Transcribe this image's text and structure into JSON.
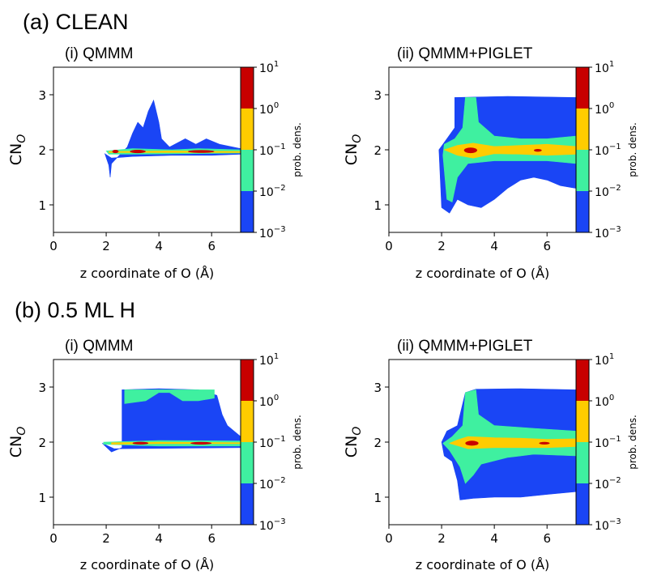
{
  "sections": [
    {
      "label": "(a) CLEAN"
    },
    {
      "label": "(b) 0.5 ML H"
    }
  ],
  "colorbar": {
    "label": "prob. dens.",
    "ticks": [
      {
        "base": "10",
        "exp": "1"
      },
      {
        "base": "10",
        "exp": "0"
      },
      {
        "base": "10",
        "exp": "−1"
      },
      {
        "base": "10",
        "exp": "−2"
      },
      {
        "base": "10",
        "exp": "−3"
      }
    ],
    "levels": [
      0.001,
      0.01,
      0.1,
      1,
      10
    ],
    "colors": [
      "#1a45f5",
      "#3ff0a0",
      "#ffcc00",
      "#c80000"
    ]
  },
  "chart_data": [
    {
      "type": "heatmap",
      "section": "(a) CLEAN",
      "title": "(i) QMMM",
      "xlabel": "z coordinate of O (Å)",
      "ylabel": {
        "base": "CN",
        "sub": "O"
      },
      "xlim": [
        0,
        7.1
      ],
      "ylim": [
        0.5,
        3.5
      ],
      "xticks": [
        0,
        2,
        4,
        6
      ],
      "yticks": [
        1,
        2,
        3
      ],
      "regions": [
        {
          "level": "10^-3 to 10^-2",
          "polygon": [
            [
              1.95,
              1.93
            ],
            [
              2.1,
              1.72
            ],
            [
              2.15,
              1.5
            ],
            [
              2.2,
              1.75
            ],
            [
              2.5,
              1.9
            ],
            [
              2.8,
              2.05
            ],
            [
              3.0,
              2.3
            ],
            [
              3.2,
              2.5
            ],
            [
              3.4,
              2.4
            ],
            [
              3.6,
              2.7
            ],
            [
              3.8,
              2.9
            ],
            [
              4.0,
              2.5
            ],
            [
              4.1,
              2.2
            ],
            [
              4.4,
              2.05
            ],
            [
              5.0,
              2.2
            ],
            [
              5.4,
              2.1
            ],
            [
              5.8,
              2.2
            ],
            [
              6.3,
              2.1
            ],
            [
              7.1,
              2.02
            ],
            [
              7.1,
              1.92
            ],
            [
              6.0,
              1.9
            ],
            [
              4.5,
              1.9
            ],
            [
              3.0,
              1.88
            ],
            [
              2.2,
              1.85
            ]
          ]
        },
        {
          "level": "10^-2 to 10^-1",
          "polygon": [
            [
              2.0,
              1.98
            ],
            [
              3.0,
              2.02
            ],
            [
              4.5,
              2.0
            ],
            [
              5.5,
              2.02
            ],
            [
              7.1,
              2.0
            ],
            [
              7.1,
              1.94
            ],
            [
              5.0,
              1.93
            ],
            [
              3.0,
              1.92
            ],
            [
              2.1,
              1.92
            ]
          ]
        },
        {
          "level": "10^-1 to 10^0",
          "polygon": [
            [
              2.1,
              1.97
            ],
            [
              4.5,
              1.98
            ],
            [
              7.1,
              1.97
            ],
            [
              7.1,
              1.95
            ],
            [
              4.5,
              1.95
            ],
            [
              2.1,
              1.95
            ]
          ]
        },
        {
          "level": "10^0 to 10^1",
          "ellipses": [
            [
              2.35,
              1.97,
              0.12,
              0.03
            ],
            [
              3.2,
              1.97,
              0.3,
              0.03
            ],
            [
              5.6,
              1.97,
              0.5,
              0.025
            ]
          ]
        }
      ]
    },
    {
      "type": "heatmap",
      "section": "(a) CLEAN",
      "title": "(ii) QMMM+PIGLET",
      "xlabel": "z coordinate of O (Å)",
      "ylabel": {
        "base": "CN",
        "sub": "O"
      },
      "xlim": [
        0,
        7.1
      ],
      "ylim": [
        0.5,
        3.5
      ],
      "xticks": [
        0,
        2,
        4,
        6
      ],
      "yticks": [
        1,
        2,
        3
      ],
      "regions": [
        {
          "level": "10^-3 to 10^-2",
          "polygon": [
            [
              1.9,
              2.0
            ],
            [
              2.0,
              0.95
            ],
            [
              2.3,
              0.85
            ],
            [
              2.6,
              1.1
            ],
            [
              3.0,
              1.0
            ],
            [
              3.5,
              0.95
            ],
            [
              4.0,
              1.1
            ],
            [
              4.5,
              1.3
            ],
            [
              5.0,
              1.45
            ],
            [
              5.5,
              1.5
            ],
            [
              6.0,
              1.45
            ],
            [
              6.5,
              1.35
            ],
            [
              7.1,
              1.3
            ],
            [
              7.1,
              2.95
            ],
            [
              4.5,
              2.97
            ],
            [
              2.5,
              2.95
            ],
            [
              2.5,
              2.4
            ],
            [
              2.2,
              2.2
            ]
          ]
        },
        {
          "level": "10^-2 to 10^-1",
          "polygon": [
            [
              2.05,
              1.9
            ],
            [
              2.2,
              1.1
            ],
            [
              2.4,
              1.05
            ],
            [
              2.6,
              1.5
            ],
            [
              3.0,
              1.75
            ],
            [
              4.0,
              1.8
            ],
            [
              5.0,
              1.8
            ],
            [
              6.0,
              1.8
            ],
            [
              7.1,
              1.75
            ],
            [
              7.1,
              2.25
            ],
            [
              6.0,
              2.2
            ],
            [
              5.0,
              2.2
            ],
            [
              4.0,
              2.25
            ],
            [
              3.4,
              2.5
            ],
            [
              3.3,
              2.95
            ],
            [
              2.9,
              2.95
            ],
            [
              2.8,
              2.4
            ],
            [
              2.5,
              2.2
            ],
            [
              2.1,
              2.1
            ]
          ]
        },
        {
          "level": "10^-1 to 10^0",
          "polygon": [
            [
              2.1,
              2.0
            ],
            [
              2.6,
              1.9
            ],
            [
              3.2,
              1.85
            ],
            [
              4.0,
              1.93
            ],
            [
              5.0,
              1.92
            ],
            [
              6.0,
              1.9
            ],
            [
              7.1,
              1.92
            ],
            [
              7.1,
              2.06
            ],
            [
              6.0,
              2.1
            ],
            [
              5.0,
              2.08
            ],
            [
              4.0,
              2.06
            ],
            [
              3.2,
              2.12
            ],
            [
              2.6,
              2.08
            ]
          ]
        },
        {
          "level": "10^0 to 10^1",
          "ellipses": [
            [
              3.1,
              1.99,
              0.25,
              0.05
            ],
            [
              5.65,
              1.99,
              0.15,
              0.025
            ]
          ]
        }
      ]
    },
    {
      "type": "heatmap",
      "section": "(b) 0.5 ML H",
      "title": "(i) QMMM",
      "xlabel": "z coordinate of O (Å)",
      "ylabel": {
        "base": "CN",
        "sub": "O"
      },
      "xlim": [
        0,
        7.1
      ],
      "ylim": [
        0.5,
        3.5
      ],
      "xticks": [
        0,
        2,
        4,
        6
      ],
      "yticks": [
        1,
        2,
        3
      ],
      "regions": [
        {
          "level": "10^-3 to 10^-2",
          "polygon": [
            [
              1.85,
              1.98
            ],
            [
              2.2,
              1.82
            ],
            [
              2.6,
              1.9
            ],
            [
              2.6,
              2.95
            ],
            [
              4.0,
              2.97
            ],
            [
              5.5,
              2.95
            ],
            [
              6.2,
              2.85
            ],
            [
              6.4,
              2.5
            ],
            [
              6.6,
              2.3
            ],
            [
              7.1,
              2.1
            ],
            [
              7.1,
              1.9
            ],
            [
              2.3,
              1.88
            ]
          ]
        },
        {
          "level": "10^-2 to 10^-1",
          "polygon": [
            [
              1.9,
              1.96
            ],
            [
              4.0,
              1.93
            ],
            [
              7.1,
              1.93
            ],
            [
              7.1,
              2.02
            ],
            [
              4.0,
              2.03
            ],
            [
              1.9,
              2.0
            ]
          ]
        },
        {
          "level": "10^-2 to 10^-1",
          "polygon": [
            [
              2.7,
              2.7
            ],
            [
              3.5,
              2.75
            ],
            [
              4.0,
              2.9
            ],
            [
              4.4,
              2.9
            ],
            [
              4.9,
              2.75
            ],
            [
              5.5,
              2.75
            ],
            [
              6.1,
              2.8
            ],
            [
              6.1,
              2.95
            ],
            [
              2.7,
              2.95
            ]
          ]
        },
        {
          "level": "10^-1 to 10^0",
          "polygon": [
            [
              2.2,
              1.96
            ],
            [
              4.0,
              1.97
            ],
            [
              7.1,
              1.97
            ],
            [
              7.1,
              1.99
            ],
            [
              4.0,
              2.0
            ],
            [
              2.2,
              1.99
            ]
          ]
        },
        {
          "level": "10^0 to 10^1",
          "ellipses": [
            [
              3.3,
              1.98,
              0.3,
              0.025
            ],
            [
              5.6,
              1.98,
              0.4,
              0.022
            ]
          ]
        }
      ]
    },
    {
      "type": "heatmap",
      "section": "(b) 0.5 ML H",
      "title": "(ii) QMMM+PIGLET",
      "xlabel": "z coordinate of O (Å)",
      "ylabel": {
        "base": "CN",
        "sub": "O"
      },
      "xlim": [
        0,
        7.1
      ],
      "ylim": [
        0.5,
        3.5
      ],
      "xticks": [
        0,
        2,
        4,
        6
      ],
      "yticks": [
        1,
        2,
        3
      ],
      "regions": [
        {
          "level": "10^-3 to 10^-2",
          "polygon": [
            [
              2.0,
              2.0
            ],
            [
              2.1,
              1.75
            ],
            [
              2.4,
              1.65
            ],
            [
              2.6,
              1.3
            ],
            [
              2.7,
              0.95
            ],
            [
              3.2,
              0.98
            ],
            [
              4.0,
              1.0
            ],
            [
              5.0,
              1.0
            ],
            [
              6.0,
              1.05
            ],
            [
              7.1,
              1.1
            ],
            [
              7.1,
              2.95
            ],
            [
              5.0,
              2.97
            ],
            [
              3.3,
              2.96
            ],
            [
              2.9,
              2.9
            ],
            [
              2.6,
              2.3
            ],
            [
              2.2,
              2.2
            ]
          ]
        },
        {
          "level": "10^-2 to 10^-1",
          "polygon": [
            [
              2.05,
              1.98
            ],
            [
              2.3,
              1.85
            ],
            [
              2.7,
              1.55
            ],
            [
              2.9,
              1.25
            ],
            [
              3.2,
              1.4
            ],
            [
              3.5,
              1.6
            ],
            [
              4.5,
              1.72
            ],
            [
              5.5,
              1.78
            ],
            [
              7.1,
              1.75
            ],
            [
              7.1,
              2.2
            ],
            [
              5.5,
              2.25
            ],
            [
              4.0,
              2.3
            ],
            [
              3.4,
              2.5
            ],
            [
              3.3,
              2.95
            ],
            [
              2.9,
              2.9
            ],
            [
              2.8,
              2.3
            ],
            [
              2.4,
              2.1
            ]
          ]
        },
        {
          "level": "10^-1 to 10^0",
          "polygon": [
            [
              2.3,
              1.98
            ],
            [
              3.0,
              1.88
            ],
            [
              4.0,
              1.9
            ],
            [
              5.0,
              1.9
            ],
            [
              6.0,
              1.9
            ],
            [
              7.1,
              1.92
            ],
            [
              7.1,
              2.06
            ],
            [
              6.0,
              2.05
            ],
            [
              5.0,
              2.07
            ],
            [
              4.0,
              2.08
            ],
            [
              3.0,
              2.1
            ],
            [
              2.6,
              2.04
            ]
          ]
        },
        {
          "level": "10^0 to 10^1",
          "ellipses": [
            [
              3.15,
              1.98,
              0.25,
              0.045
            ],
            [
              5.9,
              1.98,
              0.2,
              0.02
            ]
          ]
        }
      ]
    }
  ]
}
